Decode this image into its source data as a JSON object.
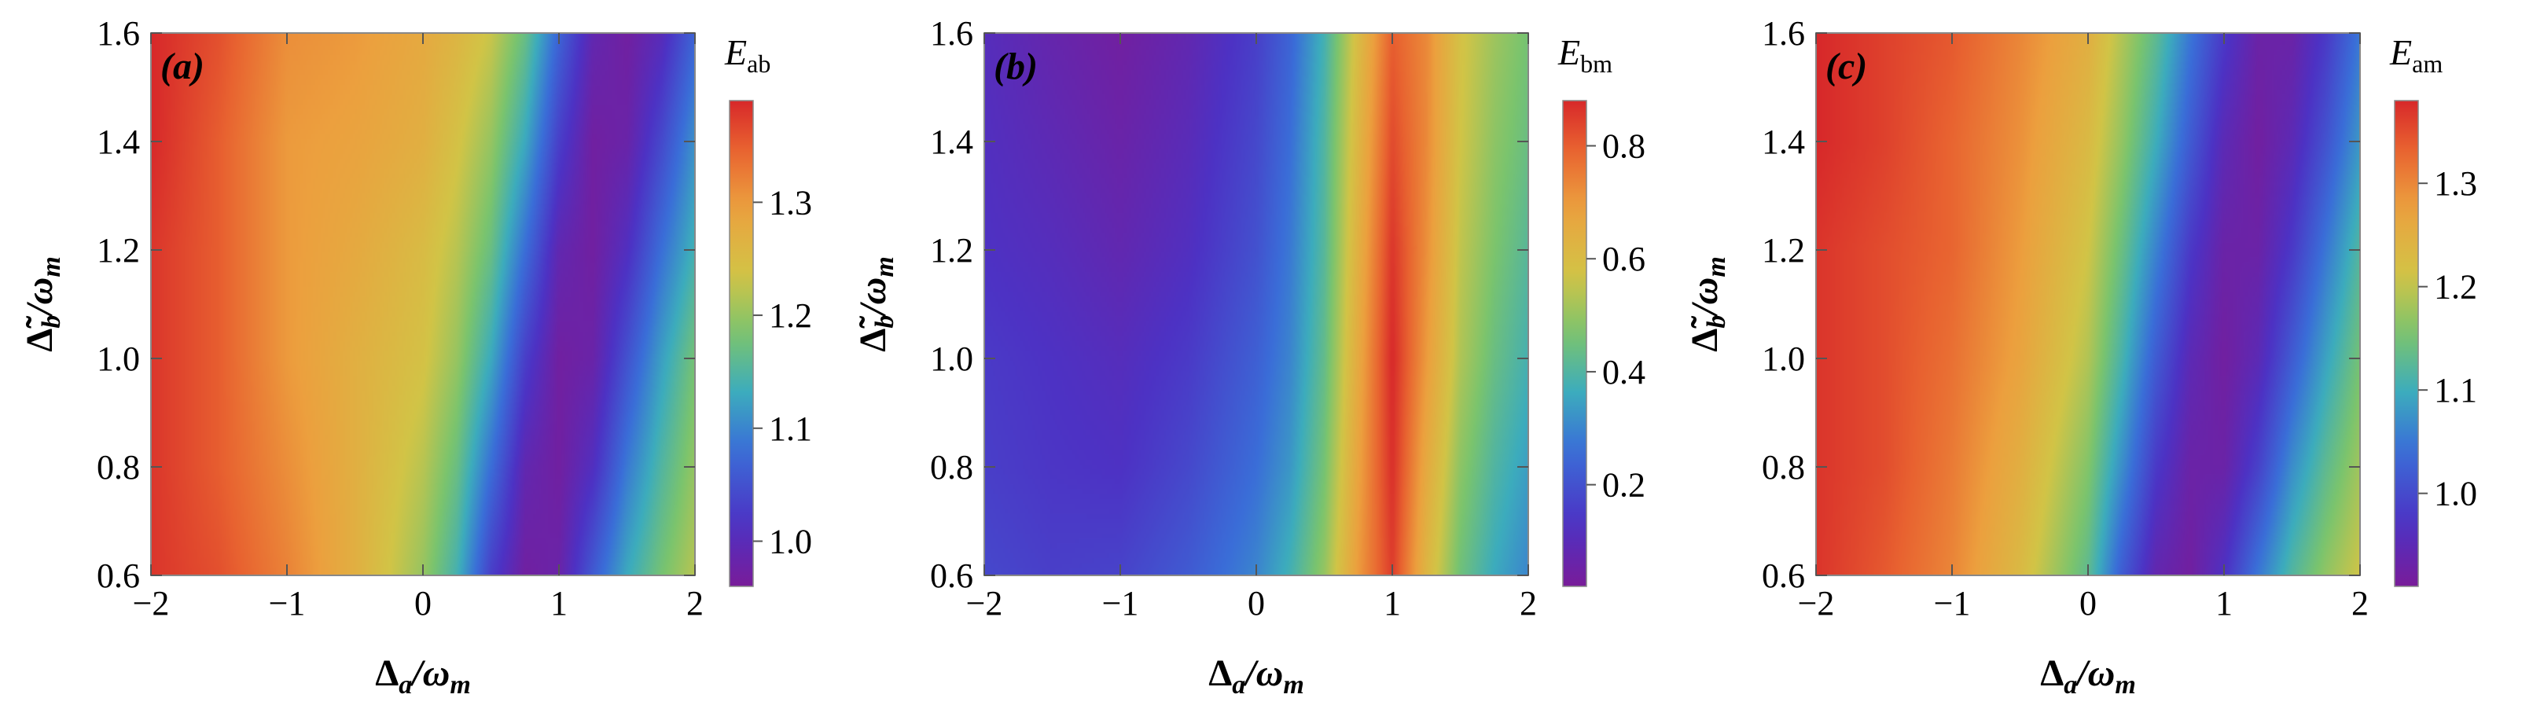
{
  "chart_data": [
    {
      "type": "heatmap",
      "panel_label": "(a)",
      "colorbar_label": "E",
      "colorbar_subscript": "ab",
      "xlabel_main": "Δ",
      "xlabel_sub": "a",
      "xlabel_rest": "/ω",
      "xlabel_rest_sub": "m",
      "ylabel_main": "Δ̃",
      "ylabel_sub": "b",
      "ylabel_rest": "/ω",
      "ylabel_rest_sub": "m",
      "xlim": [
        -2,
        2
      ],
      "ylim": [
        0.6,
        1.6
      ],
      "xticks": [
        -2,
        -1,
        0,
        1,
        2
      ],
      "xtick_labels": [
        "−2",
        "−1",
        "0",
        "1",
        "2"
      ],
      "yticks": [
        0.6,
        0.8,
        1.0,
        1.2,
        1.4,
        1.6
      ],
      "ytick_labels": [
        "0.6",
        "0.8",
        "1.0",
        "1.2",
        "1.4",
        "1.6"
      ],
      "zlim": [
        0.96,
        1.39
      ],
      "cbar_ticks": [
        1.0,
        1.1,
        1.2,
        1.3
      ],
      "cbar_tick_labels": [
        "1.0",
        "1.1",
        "1.2",
        "1.3"
      ],
      "x": [
        -2,
        -1.5,
        -1,
        -0.5,
        0,
        0.25,
        0.5,
        0.75,
        1,
        1.25,
        1.5,
        1.75,
        2
      ],
      "y": [
        0.6,
        0.8,
        1.0,
        1.2,
        1.4,
        1.6
      ],
      "z": [
        [
          1.38,
          1.36,
          1.32,
          1.27,
          1.2,
          1.14,
          1.03,
          0.97,
          0.98,
          1.06,
          1.13,
          1.18,
          1.22
        ],
        [
          1.38,
          1.35,
          1.31,
          1.27,
          1.22,
          1.17,
          1.08,
          0.99,
          0.97,
          1.01,
          1.09,
          1.15,
          1.2
        ],
        [
          1.38,
          1.35,
          1.3,
          1.27,
          1.24,
          1.2,
          1.13,
          1.03,
          0.97,
          0.98,
          1.05,
          1.12,
          1.18
        ],
        [
          1.38,
          1.35,
          1.3,
          1.28,
          1.25,
          1.22,
          1.17,
          1.08,
          0.99,
          0.97,
          1.01,
          1.08,
          1.14
        ],
        [
          1.39,
          1.35,
          1.3,
          1.29,
          1.27,
          1.24,
          1.2,
          1.13,
          1.03,
          0.97,
          0.98,
          1.04,
          1.11
        ],
        [
          1.39,
          1.36,
          1.31,
          1.3,
          1.28,
          1.26,
          1.23,
          1.17,
          1.07,
          0.99,
          0.97,
          1.0,
          1.07
        ]
      ]
    },
    {
      "type": "heatmap",
      "panel_label": "(b)",
      "colorbar_label": "E",
      "colorbar_subscript": "bm",
      "xlabel_main": "Δ",
      "xlabel_sub": "a",
      "xlabel_rest": "/ω",
      "xlabel_rest_sub": "m",
      "ylabel_main": "Δ̃",
      "ylabel_sub": "b",
      "ylabel_rest": "/ω",
      "ylabel_rest_sub": "m",
      "xlim": [
        -2,
        2
      ],
      "ylim": [
        0.6,
        1.6
      ],
      "xticks": [
        -2,
        -1,
        0,
        1,
        2
      ],
      "xtick_labels": [
        "−2",
        "−1",
        "0",
        "1",
        "2"
      ],
      "yticks": [
        0.6,
        0.8,
        1.0,
        1.2,
        1.4,
        1.6
      ],
      "ytick_labels": [
        "0.6",
        "0.8",
        "1.0",
        "1.2",
        "1.4",
        "1.6"
      ],
      "zlim": [
        0.02,
        0.88
      ],
      "cbar_ticks": [
        0.2,
        0.4,
        0.6,
        0.8
      ],
      "cbar_tick_labels": [
        "0.2",
        "0.4",
        "0.6",
        "0.8"
      ],
      "x": [
        -2,
        -1.5,
        -1,
        -0.5,
        0,
        0.25,
        0.5,
        0.75,
        1,
        1.25,
        1.5,
        1.75,
        2
      ],
      "y": [
        0.6,
        0.8,
        1.0,
        1.2,
        1.4,
        1.6
      ],
      "z": [
        [
          0.18,
          0.16,
          0.17,
          0.22,
          0.3,
          0.38,
          0.5,
          0.7,
          0.85,
          0.62,
          0.45,
          0.36,
          0.3
        ],
        [
          0.16,
          0.14,
          0.13,
          0.18,
          0.26,
          0.33,
          0.46,
          0.68,
          0.87,
          0.66,
          0.49,
          0.4,
          0.34
        ],
        [
          0.15,
          0.13,
          0.11,
          0.15,
          0.23,
          0.3,
          0.43,
          0.66,
          0.88,
          0.7,
          0.53,
          0.44,
          0.38
        ],
        [
          0.13,
          0.11,
          0.08,
          0.12,
          0.2,
          0.28,
          0.41,
          0.64,
          0.86,
          0.72,
          0.55,
          0.47,
          0.41
        ],
        [
          0.12,
          0.09,
          0.06,
          0.1,
          0.18,
          0.26,
          0.4,
          0.62,
          0.83,
          0.73,
          0.57,
          0.49,
          0.44
        ],
        [
          0.11,
          0.07,
          0.04,
          0.08,
          0.16,
          0.24,
          0.38,
          0.6,
          0.8,
          0.73,
          0.58,
          0.51,
          0.46
        ]
      ]
    },
    {
      "type": "heatmap",
      "panel_label": "(c)",
      "colorbar_label": "E",
      "colorbar_subscript": "am",
      "xlabel_main": "Δ",
      "xlabel_sub": "a",
      "xlabel_rest": "/ω",
      "xlabel_rest_sub": "m",
      "ylabel_main": "Δ̃",
      "ylabel_sub": "b",
      "ylabel_rest": "/ω",
      "ylabel_rest_sub": "m",
      "xlim": [
        -2,
        2
      ],
      "ylim": [
        0.6,
        1.6
      ],
      "xticks": [
        -2,
        -1,
        0,
        1,
        2
      ],
      "xtick_labels": [
        "−2",
        "−1",
        "0",
        "1",
        "2"
      ],
      "yticks": [
        0.6,
        0.8,
        1.0,
        1.2,
        1.4,
        1.6
      ],
      "ytick_labels": [
        "0.6",
        "0.8",
        "1.0",
        "1.2",
        "1.4",
        "1.6"
      ],
      "zlim": [
        0.91,
        1.38
      ],
      "cbar_ticks": [
        1.0,
        1.1,
        1.2,
        1.3
      ],
      "cbar_tick_labels": [
        "1.0",
        "1.1",
        "1.2",
        "1.3"
      ],
      "x": [
        -2,
        -1.5,
        -1,
        -0.5,
        0,
        0.25,
        0.5,
        0.75,
        1,
        1.25,
        1.5,
        1.75,
        2
      ],
      "y": [
        0.6,
        0.8,
        1.0,
        1.2,
        1.4,
        1.6
      ],
      "z": [
        [
          1.37,
          1.34,
          1.3,
          1.23,
          1.13,
          1.02,
          0.94,
          0.92,
          0.97,
          1.05,
          1.12,
          1.17,
          1.21
        ],
        [
          1.37,
          1.35,
          1.31,
          1.25,
          1.16,
          1.07,
          0.98,
          0.93,
          0.93,
          0.99,
          1.07,
          1.13,
          1.18
        ],
        [
          1.37,
          1.35,
          1.32,
          1.27,
          1.19,
          1.11,
          1.02,
          0.95,
          0.92,
          0.95,
          1.02,
          1.09,
          1.15
        ],
        [
          1.37,
          1.35,
          1.33,
          1.28,
          1.21,
          1.14,
          1.06,
          0.98,
          0.93,
          0.93,
          0.98,
          1.05,
          1.12
        ],
        [
          1.38,
          1.36,
          1.33,
          1.29,
          1.23,
          1.17,
          1.1,
          1.02,
          0.95,
          0.92,
          0.95,
          1.01,
          1.08
        ],
        [
          1.38,
          1.36,
          1.34,
          1.3,
          1.25,
          1.19,
          1.13,
          1.05,
          0.98,
          0.93,
          0.93,
          0.98,
          1.05
        ]
      ]
    }
  ]
}
